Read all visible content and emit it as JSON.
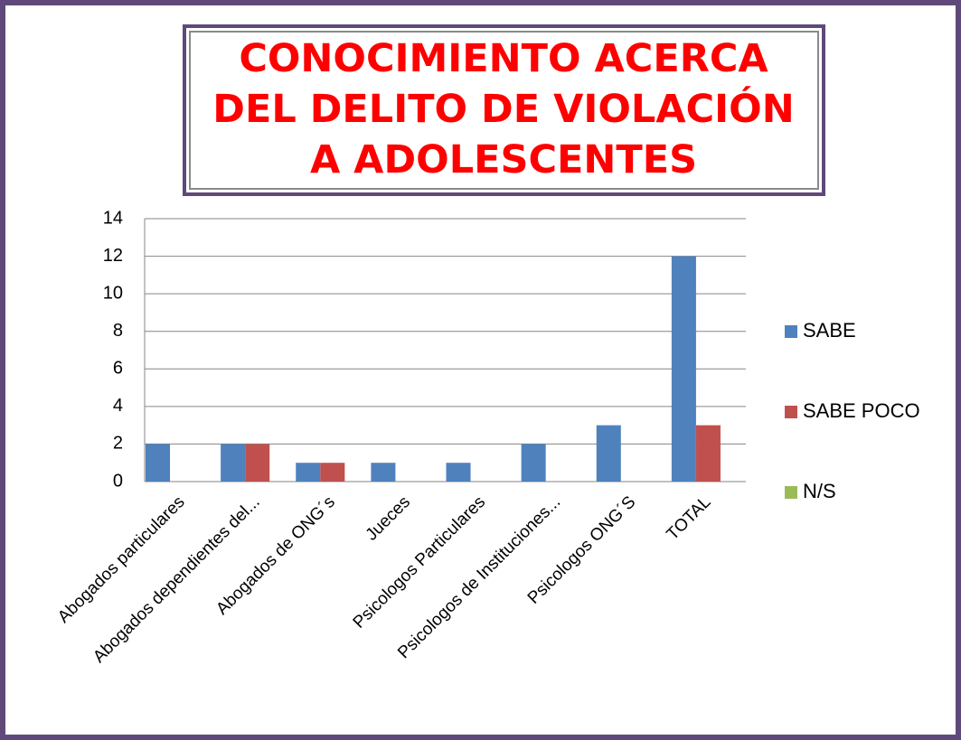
{
  "chart_data": {
    "type": "bar",
    "title": "CONOCIMIENTO ACERCA DEL DELITO DE VIOLACIÓN  A ADOLESCENTES",
    "categories": [
      "Abogados particulares",
      "Abogados dependientes del...",
      "Abogados de ONG´s",
      "Jueces",
      "Psicologos Particulares",
      "Psicologos de Instituciones...",
      "Psicologos ONG´S",
      "TOTAL"
    ],
    "series": [
      {
        "name": "SABE",
        "color": "#4f81bd",
        "values": [
          2,
          2,
          1,
          1,
          1,
          2,
          3,
          12
        ]
      },
      {
        "name": "SABE POCO",
        "color": "#c0504d",
        "values": [
          0,
          2,
          1,
          0,
          0,
          0,
          0,
          3
        ]
      },
      {
        "name": "N/S",
        "color": "#9bbb59",
        "values": [
          0,
          0,
          0,
          0,
          0,
          0,
          0,
          0
        ]
      }
    ],
    "ylim": [
      0,
      14
    ],
    "yticks": [
      0,
      2,
      4,
      6,
      8,
      10,
      12,
      14
    ],
    "grid": true,
    "legend": "right"
  }
}
